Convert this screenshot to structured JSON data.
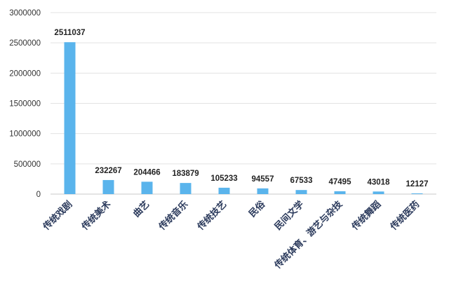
{
  "chart_data": {
    "type": "bar",
    "title": "",
    "xlabel": "",
    "ylabel": "",
    "categories": [
      "传统戏剧",
      "传统美术",
      "曲艺",
      "传统音乐",
      "传统技艺",
      "民俗",
      "民间文学",
      "传统体育、游艺与杂技",
      "传统舞蹈",
      "传统医药"
    ],
    "values": [
      2511037,
      232267,
      204466,
      183879,
      105233,
      94557,
      67533,
      47495,
      43018,
      12127
    ],
    "data_labels": [
      "2511037",
      "232267",
      "204466",
      "183879",
      "105233",
      "94557",
      "67533",
      "47495",
      "43018",
      "12127"
    ],
    "ylim": [
      0,
      3000000
    ],
    "yticks": [
      0,
      500000,
      1000000,
      1500000,
      2000000,
      2500000,
      3000000
    ],
    "ytick_labels": [
      "0",
      "500000",
      "1000000",
      "1500000",
      "2000000",
      "2500000",
      "3000000"
    ],
    "grid": true,
    "legend": "none",
    "bar_color": "#5ab4ec"
  }
}
